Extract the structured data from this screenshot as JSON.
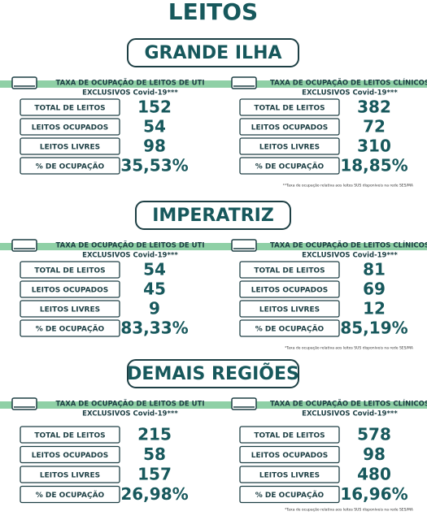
{
  "title": "LEITOS",
  "regions": [
    {
      "name": "GRANDE ILHA",
      "panels": [
        {
          "title": [
            "TAXA DE OCUPAÇÃO DE LEITOS DE UTI",
            "EXCLUSIVOS Covid-19***"
          ],
          "rows": [
            [
              "TOTAL DE LEITOS",
              "152"
            ],
            [
              "LEITOS OCUPADOS",
              "54"
            ],
            [
              "LEITOS LIVRES",
              "98"
            ],
            [
              "% DE OCUPAÇÃO",
              "35,53%"
            ]
          ]
        },
        {
          "title": [
            "TAXA DE OCUPAÇÃO DE LEITOS CLÍNICOS",
            "EXCLUSIVOS Covid-19***"
          ],
          "rows": [
            [
              "TOTAL DE LEITOS",
              "382"
            ],
            [
              "LEITOS OCUPADOS",
              "72"
            ],
            [
              "LEITOS LIVRES",
              "310"
            ],
            [
              "% DE OCUPAÇÃO",
              "18,85%"
            ]
          ]
        }
      ],
      "note": "**Taxa de ocupação relativa aos leitos SUS disponíveis na rede SES/MA"
    },
    {
      "name": "IMPERATRIZ",
      "panels": [
        {
          "title": [
            "TAXA DE OCUPAÇÃO DE LEITOS DE UTI",
            "EXCLUSIVOS Covid-19***"
          ],
          "rows": [
            [
              "TOTAL DE LEITOS",
              "54"
            ],
            [
              "LEITOS OCUPADOS",
              "45"
            ],
            [
              "LEITOS LIVRES",
              "9"
            ],
            [
              "% DE OCUPAÇÃO",
              "83,33%"
            ]
          ]
        },
        {
          "title": [
            "TAXA DE OCUPAÇÃO DE LEITOS CLÍNICOS",
            "EXCLUSIVOS Covid-19***"
          ],
          "rows": [
            [
              "TOTAL DE LEITOS",
              "81"
            ],
            [
              "LEITOS OCUPADOS",
              "69"
            ],
            [
              "LEITOS LIVRES",
              "12"
            ],
            [
              "% DE OCUPAÇÃO",
              "85,19%"
            ]
          ]
        }
      ],
      "note": "*Taxa de ocupação relativa aos leitos SUS disponíveis na rede SES/MA"
    },
    {
      "name": "DEMAIS REGIÕES",
      "panels": [
        {
          "title": [
            "TAXA DE OCUPAÇÃO DE LEITOS DE UTI",
            "EXCLUSIVOS Covid-19***"
          ],
          "rows": [
            [
              "TOTAL DE LEITOS",
              "215"
            ],
            [
              "LEITOS OCUPADOS",
              "58"
            ],
            [
              "LEITOS LIVRES",
              "157"
            ],
            [
              "% DE OCUPAÇÃO",
              "26,98%"
            ]
          ]
        },
        {
          "title": [
            "TAXA DE OCUPAÇÃO DE LEITOS CLÍNICOS",
            "EXCLUSIVOS Covid-19***"
          ],
          "rows": [
            [
              "TOTAL DE LEITOS",
              "578"
            ],
            [
              "LEITOS OCUPADOS",
              "98"
            ],
            [
              "LEITOS LIVRES",
              "480"
            ],
            [
              "% DE OCUPAÇÃO",
              "16,96%"
            ]
          ]
        }
      ],
      "note": "*Taxa de ocupação relativa aos leitos SUS disponíveis na rede SES/MA"
    }
  ]
}
